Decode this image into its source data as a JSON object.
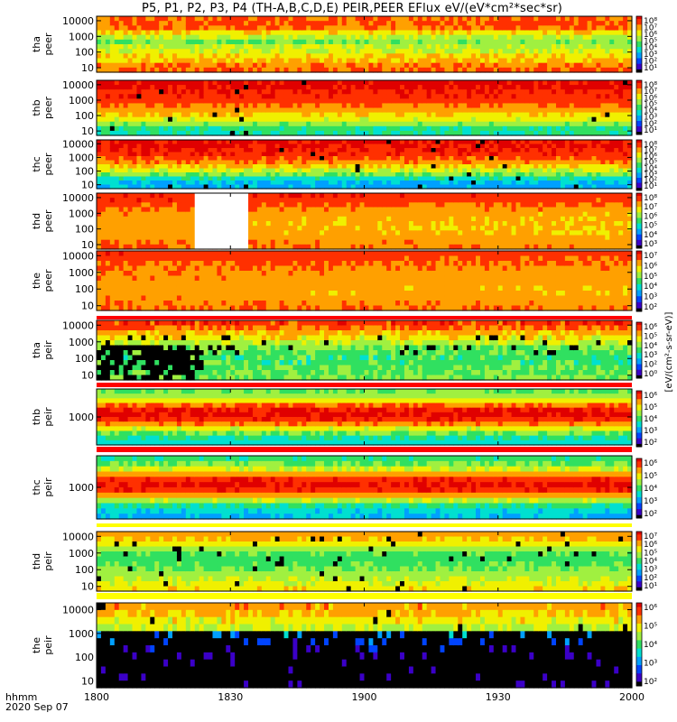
{
  "title": "P5, P1, P2, P3, P4 (TH-A,B,C,D,E) PEIR,PEER EFlux eV/(eV*cm²*sec*sr)",
  "footer": {
    "time_label": "hhmm",
    "date_label": "2020 Sep 07"
  },
  "colors": {
    "colormap": [
      "#000000",
      "#3b00c8",
      "#0044ff",
      "#00a0ff",
      "#00e0d0",
      "#30e060",
      "#a0f040",
      "#f0f000",
      "#ffa000",
      "#ff3000",
      "#e00000"
    ],
    "band_white": "#ffffff",
    "band_red": "#ff0000",
    "band_yellow": "#ffff00"
  },
  "colorbar_side_label": "[eV/(cm²-s-sr-eV)]",
  "chart_data": [
    {
      "type": "heatmap",
      "probe": "tha",
      "species": "peer",
      "ylabel": [
        "tha",
        "peer"
      ],
      "yticks": [
        "10000",
        "1000",
        "100",
        "10"
      ],
      "xlim": [
        "1800",
        "2000"
      ],
      "xticks": [
        "1800",
        "1830",
        "1900",
        "1930",
        "2000"
      ],
      "colorbar_ticks": [
        "10⁸",
        "10⁷",
        "10⁶",
        "10⁵",
        "10⁴",
        "10³",
        "10²",
        "10¹"
      ],
      "rows": [
        0.86,
        0.88,
        0.84,
        0.72,
        0.62,
        0.58,
        0.62,
        0.67,
        0.72,
        0.77,
        0.82,
        0.86
      ],
      "trend": 0.0,
      "noise": 0.07,
      "black_fraction": 0.0,
      "gap": null
    },
    {
      "type": "heatmap",
      "probe": "thb",
      "species": "peer",
      "ylabel": [
        "thb",
        "peer"
      ],
      "yticks": [
        "10000",
        "1000",
        "100",
        "10"
      ],
      "xlim": [
        "1800",
        "2000"
      ],
      "xticks": [
        "1800",
        "1830",
        "1900",
        "1930",
        "2000"
      ],
      "colorbar_ticks": [
        "10⁸",
        "10⁷",
        "10⁶",
        "10⁵",
        "10⁴",
        "10³",
        "10²",
        "10¹"
      ],
      "rows": [
        0.98,
        0.97,
        0.95,
        0.93,
        0.9,
        0.85,
        0.8,
        0.74,
        0.68,
        0.58,
        0.47,
        0.45
      ],
      "trend": 0.0,
      "noise": 0.04,
      "black_fraction": 0.01,
      "gap": null
    },
    {
      "type": "heatmap",
      "probe": "thc",
      "species": "peer",
      "ylabel": [
        "thc",
        "peer"
      ],
      "yticks": [
        "10000",
        "1000",
        "100",
        "10"
      ],
      "xlim": [
        "1800",
        "2000"
      ],
      "xticks": [
        "1800",
        "1830",
        "1900",
        "1930",
        "2000"
      ],
      "colorbar_ticks": [
        "10⁸",
        "10⁷",
        "10⁶",
        "10⁵",
        "10⁴",
        "10³",
        "10²",
        "10¹"
      ],
      "rows": [
        0.97,
        0.96,
        0.94,
        0.92,
        0.88,
        0.82,
        0.74,
        0.66,
        0.56,
        0.42,
        0.34,
        0.32
      ],
      "trend": 0.0,
      "noise": 0.06,
      "black_fraction": 0.015,
      "gap": null
    },
    {
      "type": "heatmap",
      "probe": "thd",
      "species": "peer",
      "ylabel": [
        "thd",
        "peer"
      ],
      "yticks": [
        "10000",
        "1000",
        "100",
        "10"
      ],
      "xlim": [
        "1800",
        "2000"
      ],
      "xticks": [
        "1800",
        "1830",
        "1900",
        "1930",
        "2000"
      ],
      "colorbar_ticks": [
        "10⁸",
        "10⁷",
        "10⁶",
        "10⁵",
        "10⁴",
        "10³"
      ],
      "rows": [
        0.94,
        0.92,
        0.88,
        0.85,
        0.82,
        0.8,
        0.79,
        0.79,
        0.8,
        0.82,
        0.84,
        0.86
      ],
      "trend": -0.04,
      "noise": 0.04,
      "black_fraction": 0.0,
      "gap": [
        "1822",
        "1834"
      ]
    },
    {
      "type": "heatmap",
      "probe": "the",
      "species": "peer",
      "ylabel": [
        "the",
        "peer"
      ],
      "yticks": [
        "10000",
        "1000",
        "100",
        "10"
      ],
      "xlim": [
        "1800",
        "2000"
      ],
      "xticks": [
        "1800",
        "1830",
        "1900",
        "1930",
        "2000"
      ],
      "colorbar_ticks": [
        "10⁷",
        "10⁶",
        "10⁵",
        "10⁴",
        "10³",
        "10²"
      ],
      "rows": [
        0.92,
        0.9,
        0.87,
        0.85,
        0.83,
        0.82,
        0.81,
        0.8,
        0.8,
        0.82,
        0.84,
        0.86
      ],
      "trend": -0.03,
      "noise": 0.04,
      "black_fraction": 0.0,
      "gap": null
    },
    {
      "type": "heatmap",
      "probe": "tha",
      "species": "peir",
      "ylabel": [
        "tha",
        "peir"
      ],
      "yticks": [
        "10000",
        "1000",
        "100",
        "10"
      ],
      "xlim": [
        "1800",
        "2000"
      ],
      "xticks": [
        "1800",
        "1830",
        "1900",
        "1930",
        "2000"
      ],
      "colorbar_ticks": [
        "10⁶",
        "10⁵",
        "10⁴",
        "10³",
        "10²",
        "10⁰"
      ],
      "rows": [
        0.9,
        0.85,
        0.78,
        0.7,
        0.62,
        0.56,
        0.52,
        0.5,
        0.5,
        0.52,
        0.54,
        0.56
      ],
      "trend": 0.0,
      "noise": 0.07,
      "black_fraction": 0.06,
      "gap": null
    },
    {
      "type": "heatmap",
      "probe": "thb",
      "species": "peir",
      "ylabel": [
        "thb",
        "peir"
      ],
      "yticks": [
        "1000"
      ],
      "xlim": [
        "1800",
        "2000"
      ],
      "xticks": [
        "1800",
        "1830",
        "1900",
        "1930",
        "2000"
      ],
      "colorbar_ticks": [
        "10⁶",
        "10⁵",
        "10⁴",
        "10³",
        "10²"
      ],
      "rows": [
        0.55,
        0.6,
        0.7,
        0.85,
        0.95,
        0.98,
        0.92,
        0.82,
        0.68,
        0.55,
        0.45,
        0.4
      ],
      "trend": 0.0,
      "noise": 0.05,
      "black_fraction": 0.0,
      "gap": null
    },
    {
      "type": "heatmap",
      "probe": "thc",
      "species": "peir",
      "ylabel": [
        "thc",
        "peir"
      ],
      "yticks": [
        "1000"
      ],
      "xlim": [
        "1800",
        "2000"
      ],
      "xticks": [
        "1800",
        "1830",
        "1900",
        "1930",
        "2000"
      ],
      "colorbar_ticks": [
        "10⁶",
        "10⁵",
        "10⁴",
        "10³",
        "10²"
      ],
      "rows": [
        0.48,
        0.55,
        0.66,
        0.8,
        0.92,
        0.97,
        0.92,
        0.8,
        0.62,
        0.46,
        0.38,
        0.34
      ],
      "trend": 0.0,
      "noise": 0.05,
      "black_fraction": 0.0,
      "gap": null
    },
    {
      "type": "heatmap",
      "probe": "thd",
      "species": "peir",
      "ylabel": [
        "thd",
        "peir"
      ],
      "yticks": [
        "10000",
        "1000",
        "100",
        "10"
      ],
      "xlim": [
        "1800",
        "2000"
      ],
      "xticks": [
        "1800",
        "1830",
        "1900",
        "1930",
        "2000"
      ],
      "colorbar_ticks": [
        "10⁷",
        "10⁶",
        "10⁵",
        "10⁴",
        "10³",
        "10²",
        "10¹"
      ],
      "rows": [
        0.8,
        0.76,
        0.7,
        0.6,
        0.52,
        0.5,
        0.52,
        0.56,
        0.6,
        0.64,
        0.68,
        0.72
      ],
      "trend": 0.0,
      "noise": 0.05,
      "black_fraction": 0.04,
      "gap": null
    },
    {
      "type": "heatmap",
      "probe": "the",
      "species": "peir",
      "ylabel": [
        "the",
        "peir"
      ],
      "yticks": [
        "10000",
        "1000",
        "100",
        "10"
      ],
      "xlim": [
        "1800",
        "2000"
      ],
      "xticks": [
        "1800",
        "1830",
        "1900",
        "1930",
        "2000"
      ],
      "colorbar_ticks": [
        "10⁶",
        "10⁵",
        "10⁴",
        "10³",
        "10²"
      ],
      "rows": [
        0.8,
        0.76,
        0.7,
        0.64,
        0.3,
        0.2,
        0.12,
        0.08,
        0.05,
        0.04,
        0.04,
        0.04
      ],
      "trend": 0.0,
      "noise": 0.06,
      "black_fraction": 0.5,
      "gap": null
    }
  ]
}
